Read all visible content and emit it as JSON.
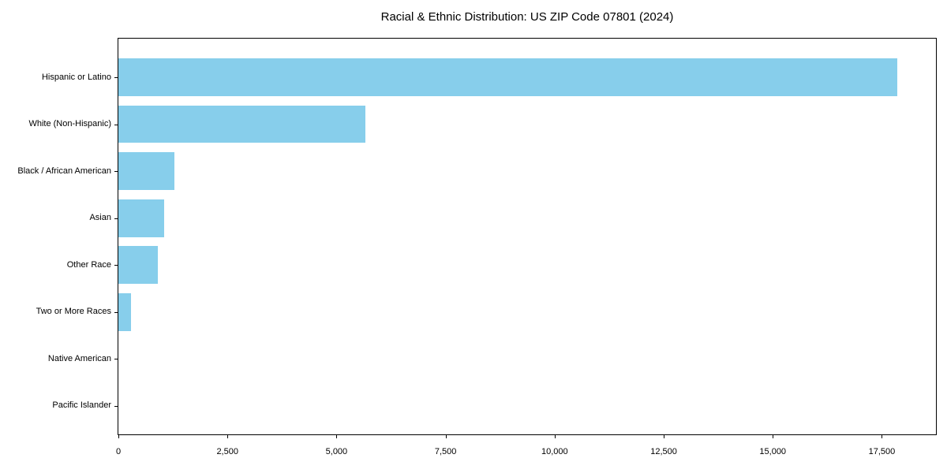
{
  "chart_data": {
    "type": "bar",
    "orientation": "horizontal",
    "title": "Racial & Ethnic Distribution: US ZIP Code 07801 (2024)",
    "categories": [
      "Hispanic or Latino",
      "White (Non-Hispanic)",
      "Black / African American",
      "Asian",
      "Other Race",
      "Two or More Races",
      "Native American",
      "Pacific Islander"
    ],
    "values": [
      17850,
      5660,
      1280,
      1050,
      900,
      290,
      0,
      0
    ],
    "xlabel": "",
    "ylabel": "",
    "xlim": [
      0,
      18740
    ],
    "x_ticks": [
      0,
      2500,
      5000,
      7500,
      10000,
      12500,
      15000,
      17500
    ],
    "x_tick_labels": [
      "0",
      "2,500",
      "5,000",
      "7,500",
      "10,000",
      "12,500",
      "15,000",
      "17,500"
    ],
    "bar_color": "#87CEEB",
    "axis_color": "#000000",
    "text_color": "#000000",
    "background_color": "#ffffff",
    "grid": false,
    "legend": null
  }
}
